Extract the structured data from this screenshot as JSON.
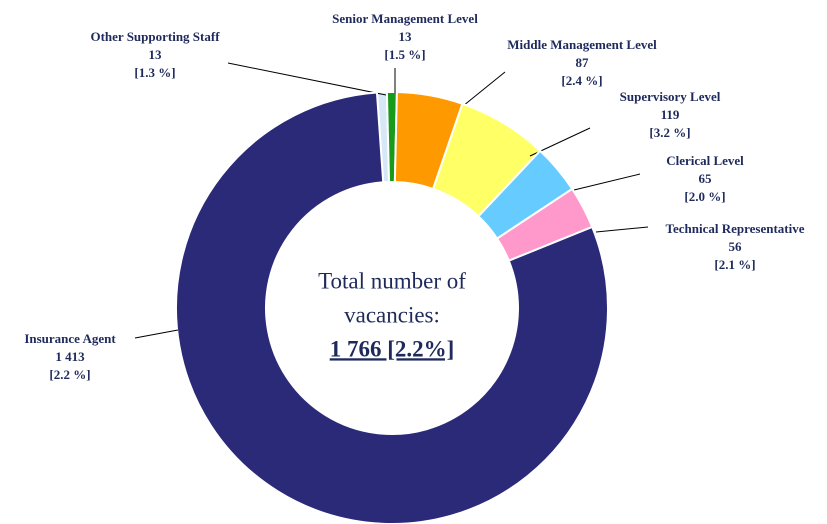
{
  "chart_data": {
    "type": "pie",
    "donut": true,
    "categories": [
      "Other Supporting Staff",
      "Senior Management Level",
      "Middle Management Level",
      "Supervisory Level",
      "Clerical Level",
      "Technical Representative",
      "Insurance Agent"
    ],
    "values": [
      13,
      13,
      87,
      119,
      65,
      56,
      1413
    ],
    "value_labels": [
      "13",
      "13",
      "87",
      "119",
      "65",
      "56",
      "1 413"
    ],
    "rate_labels": [
      "[1.3 %]",
      "[1.5 %]",
      "[2.4 %]",
      "[3.2 %]",
      "[2.0 %]",
      "[2.1 %]",
      "[2.2 %]"
    ],
    "colors": [
      "#d6e8f5",
      "#1a9a1a",
      "#ff9900",
      "#ffff66",
      "#66ccff",
      "#ff99cc",
      "#2a2a78"
    ],
    "center_text": [
      "Total number of",
      "vacancies:"
    ],
    "center_total": "1 766 [2.2%]"
  }
}
